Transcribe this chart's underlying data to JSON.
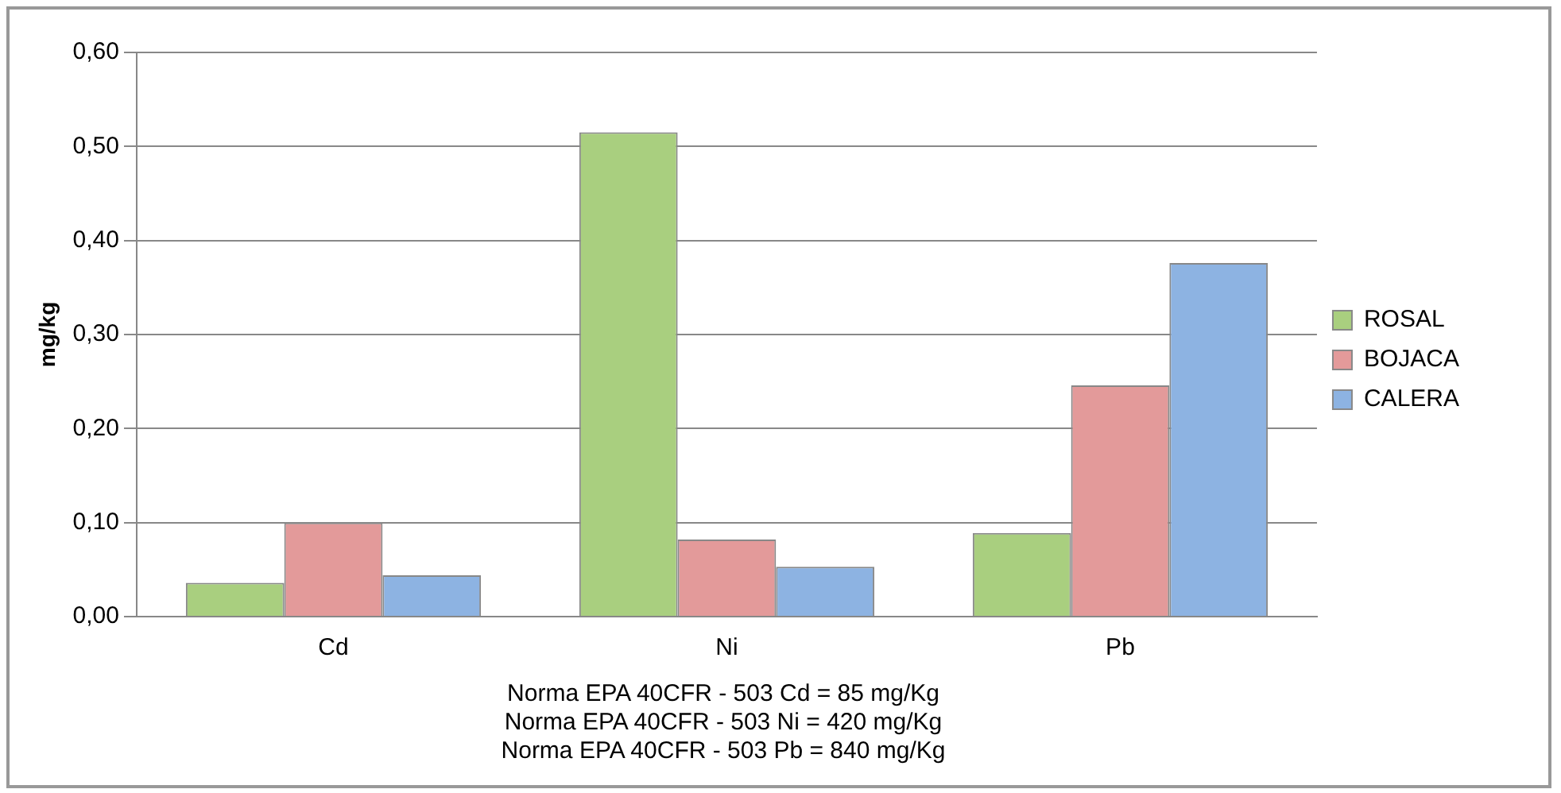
{
  "chart_data": {
    "type": "bar",
    "ylabel": "mg/kg",
    "categories": [
      "Cd",
      "Ni",
      "Pb"
    ],
    "series": [
      {
        "name": "ROSAL",
        "color": "#a9cf7f",
        "values": [
          0.036,
          0.515,
          0.089
        ]
      },
      {
        "name": "BOJACA",
        "color": "#e39a9a",
        "values": [
          0.1,
          0.082,
          0.246
        ]
      },
      {
        "name": "CALERA",
        "color": "#8db3e2",
        "values": [
          0.044,
          0.053,
          0.376
        ]
      }
    ],
    "ylim": [
      0,
      0.6
    ],
    "yticks": [
      {
        "value": 0,
        "label": "0,00"
      },
      {
        "value": 0.1,
        "label": "0,10"
      },
      {
        "value": 0.2,
        "label": "0,20"
      },
      {
        "value": 0.3,
        "label": "0,30"
      },
      {
        "value": 0.4,
        "label": "0,40"
      },
      {
        "value": 0.5,
        "label": "0,50"
      },
      {
        "value": 0.6,
        "label": "0,60"
      }
    ],
    "grid": "y",
    "legend": "right",
    "annotations": [
      "Norma EPA 40CFR - 503 Cd = 85 mg/Kg",
      "Norma EPA 40CFR - 503 Ni = 420 mg/Kg",
      "Norma EPA 40CFR - 503 Pb = 840 mg/Kg"
    ]
  }
}
